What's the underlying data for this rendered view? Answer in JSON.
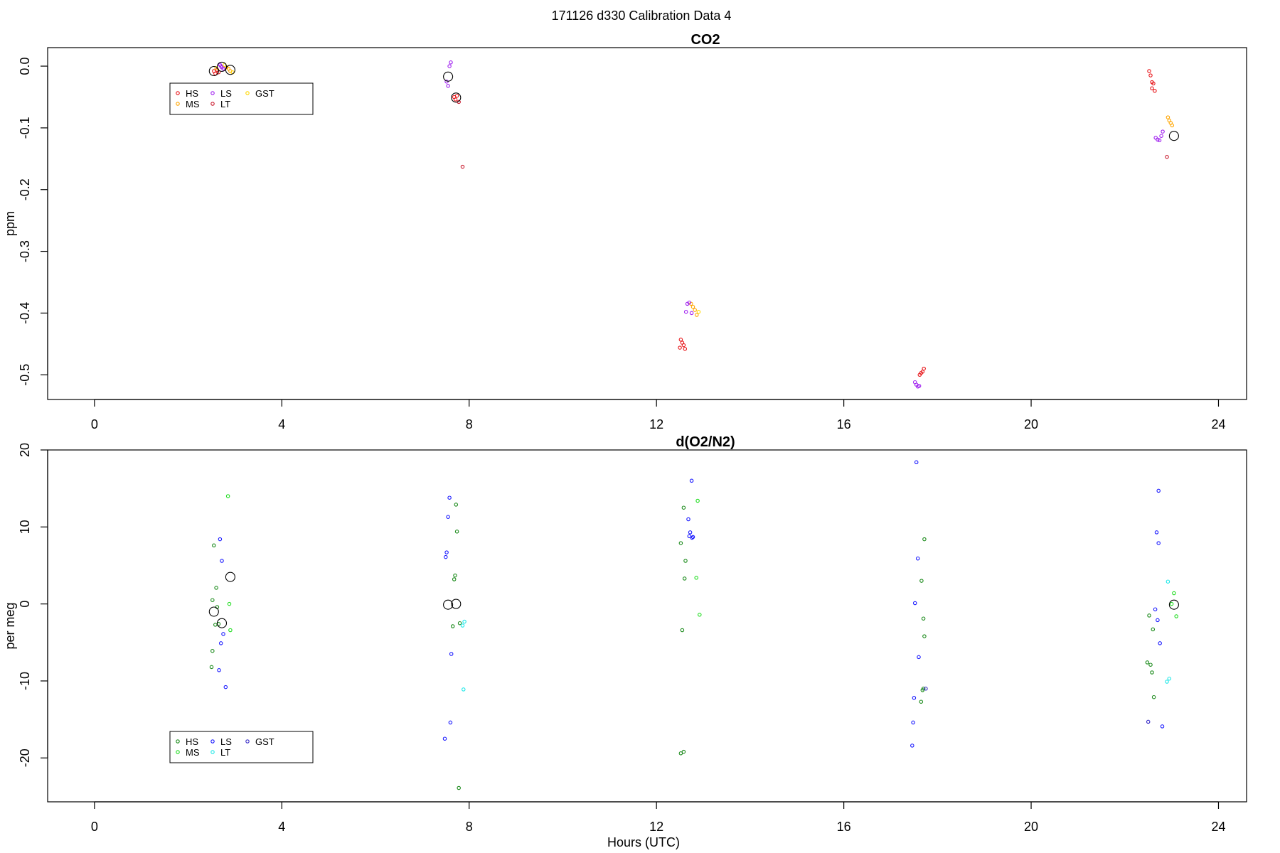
{
  "suptitle": "171126   d330   Calibration Data 4",
  "chart_data": [
    {
      "type": "scatter",
      "title": "CO2",
      "xlabel": "",
      "ylabel": "ppm",
      "xlim": [
        -1.0,
        24.6
      ],
      "ylim": [
        -0.54,
        0.03
      ],
      "xticks": [
        0,
        4,
        8,
        12,
        16,
        20,
        24
      ],
      "xtick_labels": [
        "0",
        "4",
        "8",
        "12",
        "16",
        "20",
        "24"
      ],
      "yticks": [
        0.0,
        -0.1,
        -0.2,
        -0.3,
        -0.4,
        -0.5
      ],
      "ytick_labels": [
        "0.0",
        "-0.1",
        "-0.2",
        "-0.3",
        "-0.4",
        "-0.5"
      ],
      "legend": {
        "placement": "top-left",
        "entries": [
          {
            "name": "HS",
            "color": "#e8161a"
          },
          {
            "name": "MS",
            "color": "#ffa500"
          },
          {
            "name": "LS",
            "color": "#a020f0"
          },
          {
            "name": "LT",
            "color": "#c91a2e"
          },
          {
            "name": "GST",
            "color": "#ffd700"
          }
        ]
      },
      "series": [
        {
          "name": "HS",
          "color": "#e8161a",
          "points": [
            [
              2.55,
              -0.008
            ],
            [
              2.58,
              -0.012
            ],
            [
              2.62,
              -0.006
            ],
            [
              2.65,
              -0.01
            ],
            [
              7.68,
              -0.05
            ],
            [
              7.71,
              -0.054
            ],
            [
              7.74,
              -0.048
            ],
            [
              12.52,
              -0.443
            ],
            [
              12.55,
              -0.448
            ],
            [
              12.58,
              -0.452
            ],
            [
              12.5,
              -0.456
            ],
            [
              12.61,
              -0.458
            ],
            [
              17.62,
              -0.5
            ],
            [
              17.65,
              -0.497
            ],
            [
              17.68,
              -0.495
            ],
            [
              17.71,
              -0.49
            ],
            [
              22.52,
              -0.008
            ],
            [
              22.55,
              -0.015
            ],
            [
              22.58,
              -0.026
            ],
            [
              22.61,
              -0.028
            ],
            [
              22.64,
              -0.04
            ],
            [
              22.58,
              -0.036
            ]
          ]
        },
        {
          "name": "MS",
          "color": "#ffa500",
          "points": [
            [
              2.82,
              -0.002
            ],
            [
              2.86,
              -0.004
            ],
            [
              2.9,
              -0.008
            ],
            [
              12.74,
              -0.385
            ],
            [
              12.78,
              -0.39
            ],
            [
              12.82,
              -0.395
            ],
            [
              12.86,
              -0.403
            ],
            [
              22.92,
              -0.083
            ],
            [
              22.95,
              -0.088
            ],
            [
              22.98,
              -0.092
            ],
            [
              23.01,
              -0.096
            ]
          ]
        },
        {
          "name": "LS",
          "color": "#a020f0",
          "points": [
            [
              2.68,
              0.002
            ],
            [
              2.72,
              -0.002
            ],
            [
              2.75,
              -0.004
            ],
            [
              2.7,
              0.0
            ],
            [
              7.52,
              -0.025
            ],
            [
              7.55,
              -0.032
            ],
            [
              7.58,
              0.0
            ],
            [
              7.61,
              0.006
            ],
            [
              12.66,
              -0.385
            ],
            [
              12.7,
              -0.383
            ],
            [
              12.63,
              -0.398
            ],
            [
              12.75,
              -0.4
            ],
            [
              17.52,
              -0.512
            ],
            [
              17.55,
              -0.516
            ],
            [
              17.58,
              -0.519
            ],
            [
              17.61,
              -0.518
            ],
            [
              22.66,
              -0.116
            ],
            [
              22.7,
              -0.119
            ],
            [
              22.74,
              -0.12
            ],
            [
              22.78,
              -0.113
            ],
            [
              22.81,
              -0.106
            ]
          ]
        },
        {
          "name": "LT",
          "color": "#c91a2e",
          "points": [
            [
              7.78,
              -0.058
            ],
            [
              7.86,
              -0.163
            ],
            [
              22.9,
              -0.147
            ]
          ]
        },
        {
          "name": "GST",
          "color": "#ffd700",
          "points": [
            [
              2.6,
              -0.003
            ],
            [
              2.78,
              0.002
            ],
            [
              2.95,
              -0.01
            ],
            [
              12.9,
              -0.398
            ]
          ]
        },
        {
          "name": "",
          "color": "#000000",
          "big": true,
          "points": [
            [
              2.55,
              -0.008
            ],
            [
              2.72,
              -0.001
            ],
            [
              2.9,
              -0.006
            ],
            [
              7.55,
              -0.017
            ],
            [
              7.72,
              -0.051
            ],
            [
              23.05,
              -0.113
            ]
          ]
        }
      ]
    },
    {
      "type": "scatter",
      "title": "d(O2/N2)",
      "xlabel": "Hours (UTC)",
      "ylabel": "per meg",
      "xlim": [
        -1.0,
        24.6
      ],
      "ylim": [
        -25.7,
        20.0
      ],
      "xticks": [
        0,
        4,
        8,
        12,
        16,
        20,
        24
      ],
      "xtick_labels": [
        "0",
        "4",
        "8",
        "12",
        "16",
        "20",
        "24"
      ],
      "yticks": [
        20,
        10,
        0,
        -10,
        -20
      ],
      "ytick_labels": [
        "20",
        "10",
        "0",
        "-10",
        "-20"
      ],
      "legend": {
        "placement": "bottom-left",
        "entries": [
          {
            "name": "HS",
            "color": "#1a8a1a"
          },
          {
            "name": "MS",
            "color": "#22dd22"
          },
          {
            "name": "LS",
            "color": "#1a1aff"
          },
          {
            "name": "LT",
            "color": "#1fe8e8"
          },
          {
            "name": "GST",
            "color": "#3a2ec8"
          }
        ]
      },
      "series": [
        {
          "name": "HS",
          "color": "#1a8a1a",
          "points": [
            [
              2.55,
              7.6
            ],
            [
              2.6,
              2.1
            ],
            [
              2.52,
              0.5
            ],
            [
              2.62,
              -0.4
            ],
            [
              2.58,
              -2.7
            ],
            [
              2.65,
              -2.6
            ],
            [
              2.52,
              -6.1
            ],
            [
              2.5,
              -8.2
            ],
            [
              7.72,
              12.9
            ],
            [
              7.74,
              9.4
            ],
            [
              7.7,
              3.7
            ],
            [
              7.68,
              3.2
            ],
            [
              7.8,
              -2.5
            ],
            [
              7.65,
              -2.9
            ],
            [
              7.78,
              -23.9
            ],
            [
              12.58,
              12.5
            ],
            [
              12.52,
              7.9
            ],
            [
              12.62,
              5.6
            ],
            [
              12.6,
              3.3
            ],
            [
              12.55,
              -3.4
            ],
            [
              12.52,
              -19.4
            ],
            [
              12.58,
              -19.2
            ],
            [
              17.72,
              8.4
            ],
            [
              17.66,
              3.0
            ],
            [
              17.7,
              -1.9
            ],
            [
              17.72,
              -4.2
            ],
            [
              17.68,
              -11.2
            ],
            [
              17.7,
              -11.0
            ],
            [
              17.65,
              -12.7
            ],
            [
              22.52,
              -1.5
            ],
            [
              22.6,
              -3.3
            ],
            [
              22.48,
              -7.6
            ],
            [
              22.55,
              -7.9
            ],
            [
              22.58,
              -8.9
            ],
            [
              22.62,
              -12.1
            ]
          ]
        },
        {
          "name": "MS",
          "color": "#22dd22",
          "points": [
            [
              2.85,
              14.0
            ],
            [
              2.88,
              0.0
            ],
            [
              2.9,
              -3.4
            ],
            [
              12.88,
              13.4
            ],
            [
              12.85,
              3.4
            ],
            [
              12.92,
              -1.4
            ],
            [
              23.05,
              1.4
            ],
            [
              23.1,
              -1.6
            ],
            [
              23.0,
              0.0
            ]
          ]
        },
        {
          "name": "LS",
          "color": "#1a1aff",
          "points": [
            [
              2.68,
              8.4
            ],
            [
              2.72,
              5.6
            ],
            [
              2.75,
              -3.9
            ],
            [
              2.7,
              -5.1
            ],
            [
              2.66,
              -8.6
            ],
            [
              2.8,
              -10.8
            ],
            [
              7.58,
              13.8
            ],
            [
              7.55,
              11.3
            ],
            [
              7.52,
              6.7
            ],
            [
              7.5,
              6.1
            ],
            [
              7.62,
              -6.5
            ],
            [
              7.6,
              -15.4
            ],
            [
              7.48,
              -17.5
            ],
            [
              12.75,
              16.0
            ],
            [
              12.68,
              11.0
            ],
            [
              12.72,
              9.3
            ],
            [
              12.7,
              8.8
            ],
            [
              12.76,
              8.6
            ],
            [
              12.78,
              8.7
            ],
            [
              17.55,
              18.4
            ],
            [
              17.58,
              5.9
            ],
            [
              17.52,
              0.1
            ],
            [
              17.6,
              -6.9
            ],
            [
              17.5,
              -12.2
            ],
            [
              17.48,
              -15.4
            ],
            [
              17.46,
              -18.4
            ],
            [
              22.72,
              14.7
            ],
            [
              22.68,
              9.3
            ],
            [
              22.72,
              7.9
            ],
            [
              22.65,
              -0.7
            ],
            [
              22.7,
              -2.1
            ],
            [
              22.75,
              -5.1
            ],
            [
              22.8,
              -15.9
            ]
          ]
        },
        {
          "name": "LT",
          "color": "#1fe8e8",
          "points": [
            [
              7.9,
              -2.3
            ],
            [
              7.86,
              -2.8
            ],
            [
              7.88,
              -11.1
            ],
            [
              22.92,
              2.9
            ],
            [
              22.95,
              -9.7
            ],
            [
              22.9,
              -10.1
            ]
          ]
        },
        {
          "name": "GST",
          "color": "#3a2ec8",
          "points": [
            [
              22.5,
              -15.3
            ],
            [
              17.75,
              -11.0
            ]
          ]
        },
        {
          "name": "",
          "color": "#000000",
          "big": true,
          "points": [
            [
              2.55,
              -1.0
            ],
            [
              2.72,
              -2.5
            ],
            [
              2.9,
              3.5
            ],
            [
              7.55,
              -0.1
            ],
            [
              7.72,
              0.0
            ],
            [
              23.05,
              -0.1
            ]
          ]
        }
      ]
    }
  ]
}
